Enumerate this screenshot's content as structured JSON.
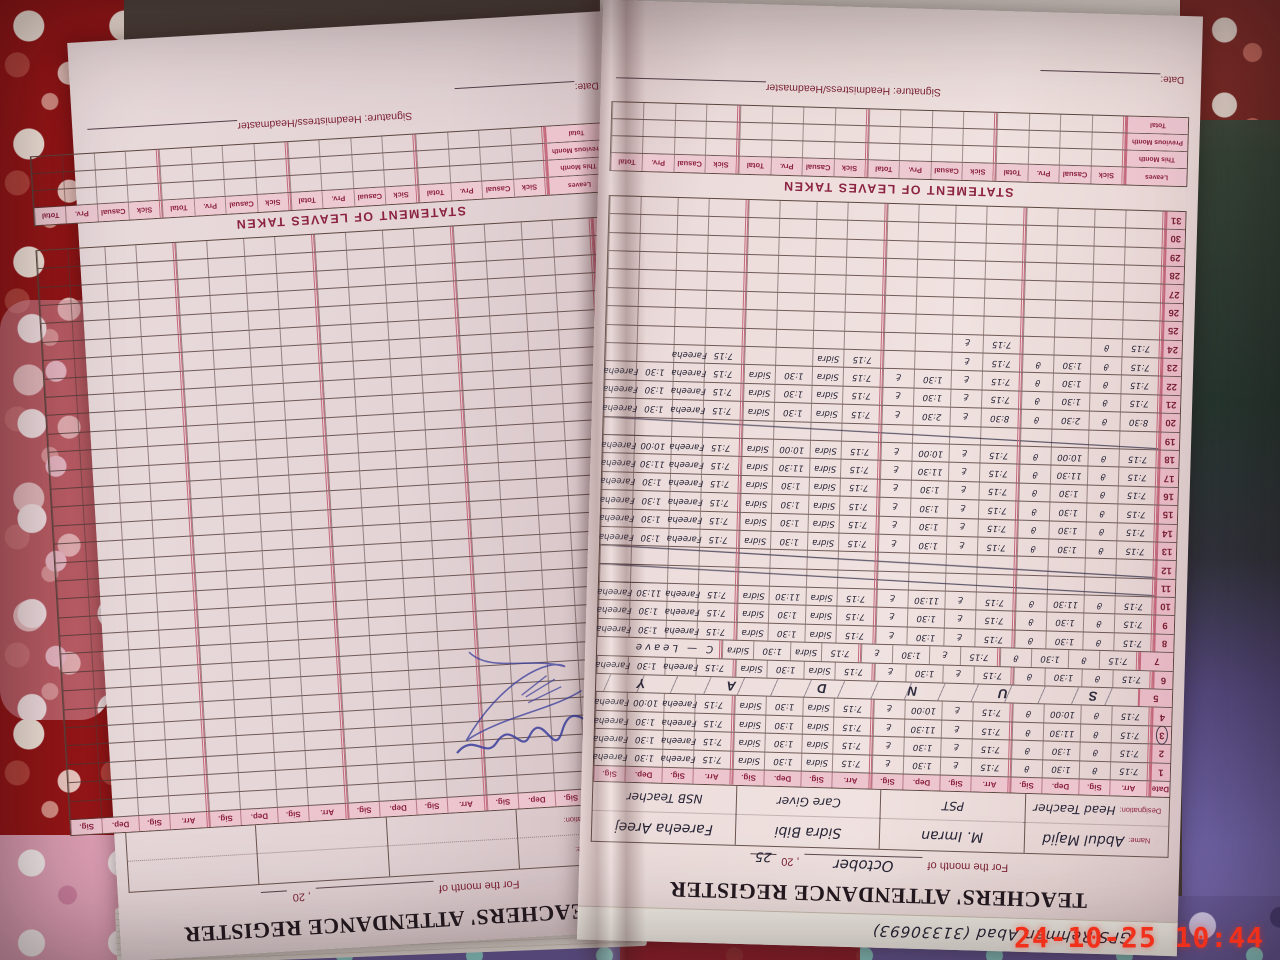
{
  "photo": {
    "timestamp": "24-10-25 10:44"
  },
  "print": {
    "title": "TEACHERS' ATTENDANCE REGISTER",
    "month_label": "For the month of",
    "year_prefix": ", 20",
    "name_label": "Name:",
    "designation_label": "Designation:",
    "date_col": "Date",
    "attn_cols": [
      "Arr.",
      "Sig.",
      "Dep.",
      "Sig."
    ],
    "leaves_title": "STATEMENT OF LEAVES TAKEN",
    "leaves_col_label": "Leaves",
    "leaves_cols": [
      "Sick",
      "Casual",
      "Prv.",
      "Total"
    ],
    "leaves_rows": [
      "This Month",
      "Previous Month",
      "Total"
    ],
    "signature_label": "Signature: Headmistress/Headmaster",
    "date_label": "Date:"
  },
  "right_entries": {
    "cover_note": "GPS Rehman Abad  (31330693)",
    "month": "October",
    "year": "25",
    "teachers": [
      {
        "name": "Abdul Majid",
        "designation": "Head Teacher"
      },
      {
        "name": "M. Imran",
        "designation": "PST"
      },
      {
        "name": "Sidra Bibi",
        "designation": "Care Giver"
      },
      {
        "name": "Fareeha Areej",
        "designation": "NSB Teacher"
      }
    ],
    "sunday_letters": [
      "S",
      "U",
      "N",
      "D",
      "A",
      "Y"
    ],
    "rows": [
      {
        "d": "1",
        "t": "n",
        "c": [
          "7:15",
          "ϑ",
          "1:30",
          "ϑ",
          "7:15",
          "ع",
          "1:30",
          "ع",
          "7:15",
          "Sidra",
          "1:30",
          "Sidra",
          "7:15",
          "Fareeha",
          "1:30",
          "Fareeha"
        ]
      },
      {
        "d": "2",
        "t": "n",
        "c": [
          "7:15",
          "ϑ",
          "1:30",
          "ϑ",
          "7:15",
          "ع",
          "1:30",
          "ع",
          "7:15",
          "Sidra",
          "1:30",
          "Sidra",
          "7:15",
          "Fareeha",
          "1:30",
          "Fareeha"
        ]
      },
      {
        "d": "3",
        "t": "n",
        "circled": true,
        "c": [
          "7:15",
          "ϑ",
          "11:30",
          "ϑ",
          "7:15",
          "ع",
          "11:30",
          "ع",
          "7:15",
          "Sidra",
          "1:30",
          "Sidra",
          "7:15",
          "Fareeha",
          "1:30",
          "Fareeha"
        ]
      },
      {
        "d": "4",
        "t": "n",
        "c": [
          "7:15",
          "ϑ",
          "10:00",
          "ϑ",
          "7:15",
          "ع",
          "10:00",
          "ع",
          "7:15",
          "Sidra",
          "1:30",
          "Sidra",
          "7:15",
          "Fareeha",
          "10:00",
          "Fareeha"
        ]
      },
      {
        "d": "5",
        "t": "sunday"
      },
      {
        "d": "6",
        "t": "n",
        "c": [
          "7:15",
          "ϑ",
          "1:30",
          "ϑ",
          "7:15",
          "ع",
          "1:30",
          "ع",
          "7:15",
          "Sidra",
          "1:30",
          "Sidra",
          "7:15",
          "Fareeha",
          "1:30",
          "Fareeha"
        ]
      },
      {
        "d": "7",
        "t": "n",
        "note": "C — Leave",
        "c": [
          "7:15",
          "ϑ",
          "1:30",
          "ϑ",
          "7:15",
          "ع",
          "1:30",
          "ع",
          "7:15",
          "Sidra",
          "1:30",
          "Sidra"
        ]
      },
      {
        "d": "8",
        "t": "n",
        "c": [
          "7:15",
          "ϑ",
          "1:30",
          "ϑ",
          "7:15",
          "ع",
          "1:30",
          "ع",
          "7:15",
          "Sidra",
          "1:30",
          "Sidra",
          "7:15",
          "Fareeha",
          "1:30",
          "Fareeha"
        ]
      },
      {
        "d": "9",
        "t": "n",
        "c": [
          "7:15",
          "ϑ",
          "1:30",
          "ϑ",
          "7:15",
          "ع",
          "1:30",
          "ع",
          "7:15",
          "Sidra",
          "1:30",
          "Sidra",
          "7:15",
          "Fareeha",
          "1:30",
          "Fareeha"
        ]
      },
      {
        "d": "10",
        "t": "n",
        "c": [
          "7:15",
          "ϑ",
          "11:30",
          "ϑ",
          "7:15",
          "ع",
          "11:30",
          "ع",
          "7:15",
          "Sidra",
          "11:30",
          "Sidra",
          "7:15",
          "Fareeha",
          "11:30",
          "Fareeha"
        ]
      },
      {
        "d": "11",
        "t": "x"
      },
      {
        "d": "12",
        "t": "x"
      },
      {
        "d": "13",
        "t": "n",
        "c": [
          "7:15",
          "ϑ",
          "1:30",
          "ϑ",
          "7:15",
          "ع",
          "1:30",
          "ع",
          "7:15",
          "Sidra",
          "1:30",
          "Sidra",
          "7:15",
          "Fareeha",
          "1:30",
          "Fareeha"
        ]
      },
      {
        "d": "14",
        "t": "n",
        "c": [
          "7:15",
          "ϑ",
          "1:30",
          "ϑ",
          "7:15",
          "ع",
          "1:30",
          "ع",
          "7:15",
          "Sidra",
          "1:30",
          "Sidra",
          "7:15",
          "Fareeha",
          "1:30",
          "Fareeha"
        ]
      },
      {
        "d": "15",
        "t": "n",
        "c": [
          "7:15",
          "ϑ",
          "1:30",
          "ϑ",
          "7:15",
          "ع",
          "1:30",
          "ع",
          "7:15",
          "Sidra",
          "1:30",
          "Sidra",
          "7:15",
          "Fareeha",
          "1:30",
          "Fareeha"
        ]
      },
      {
        "d": "16",
        "t": "n",
        "c": [
          "7:15",
          "ϑ",
          "1:30",
          "ϑ",
          "7:15",
          "ع",
          "1:30",
          "ع",
          "7:15",
          "Sidra",
          "1:30",
          "Sidra",
          "7:15",
          "Fareeha",
          "1:30",
          "Fareeha"
        ]
      },
      {
        "d": "17",
        "t": "n",
        "c": [
          "7:15",
          "ϑ",
          "11:30",
          "ϑ",
          "7:15",
          "ع",
          "11:30",
          "ع",
          "7:15",
          "Sidra",
          "11:30",
          "Sidra",
          "7:15",
          "Fareeha",
          "11:30",
          "Fareeha"
        ]
      },
      {
        "d": "18",
        "t": "n",
        "c": [
          "7:15",
          "ϑ",
          "10:00",
          "ϑ",
          "7:15",
          "ع",
          "10:00",
          "ع",
          "7:15",
          "Sidra",
          "10:00",
          "Sidra",
          "7:15",
          "Fareeha",
          "10:00",
          "Fareeha"
        ]
      },
      {
        "d": "19",
        "t": "x"
      },
      {
        "d": "20",
        "t": "n",
        "c": [
          "8:30",
          "ϑ",
          "2:30",
          "ϑ",
          "8:30",
          "ع",
          "2:30",
          "ع",
          "7:15",
          "Sidra",
          "1:30",
          "Sidra",
          "7:15",
          "Fareeha",
          "1:30",
          "Fareeha"
        ]
      },
      {
        "d": "21",
        "t": "n",
        "c": [
          "7:15",
          "ϑ",
          "1:30",
          "ϑ",
          "7:15",
          "ع",
          "1:30",
          "ع",
          "7:15",
          "Sidra",
          "1:30",
          "Sidra",
          "7:15",
          "Fareeha",
          "1:30",
          "Fareeha"
        ]
      },
      {
        "d": "22",
        "t": "n",
        "c": [
          "7:15",
          "ϑ",
          "1:30",
          "ϑ",
          "7:15",
          "ع",
          "1:30",
          "ع",
          "7:15",
          "Sidra",
          "1:30",
          "Sidra",
          "7:15",
          "Fareeha",
          "1:30",
          "Fareeha"
        ]
      },
      {
        "d": "23",
        "t": "n",
        "c": [
          "7:15",
          "ϑ",
          "1:30",
          "ϑ",
          "7:15",
          "ع",
          "",
          "",
          "7:15",
          "Sidra",
          "",
          "",
          "7:15",
          "Fareeha",
          "",
          ""
        ]
      },
      {
        "d": "24",
        "t": "n",
        "c": [
          "7:15",
          "ϑ",
          "",
          "",
          "7:15",
          "ع",
          "",
          "",
          "",
          "",
          "",
          "",
          "",
          "",
          "",
          ""
        ]
      },
      {
        "d": "25",
        "t": "e"
      },
      {
        "d": "26",
        "t": "e"
      },
      {
        "d": "27",
        "t": "e"
      },
      {
        "d": "28",
        "t": "e"
      },
      {
        "d": "29",
        "t": "e"
      },
      {
        "d": "30",
        "t": "e"
      },
      {
        "d": "31",
        "t": "e"
      }
    ]
  },
  "left_entries": {
    "month": "",
    "year": ""
  }
}
